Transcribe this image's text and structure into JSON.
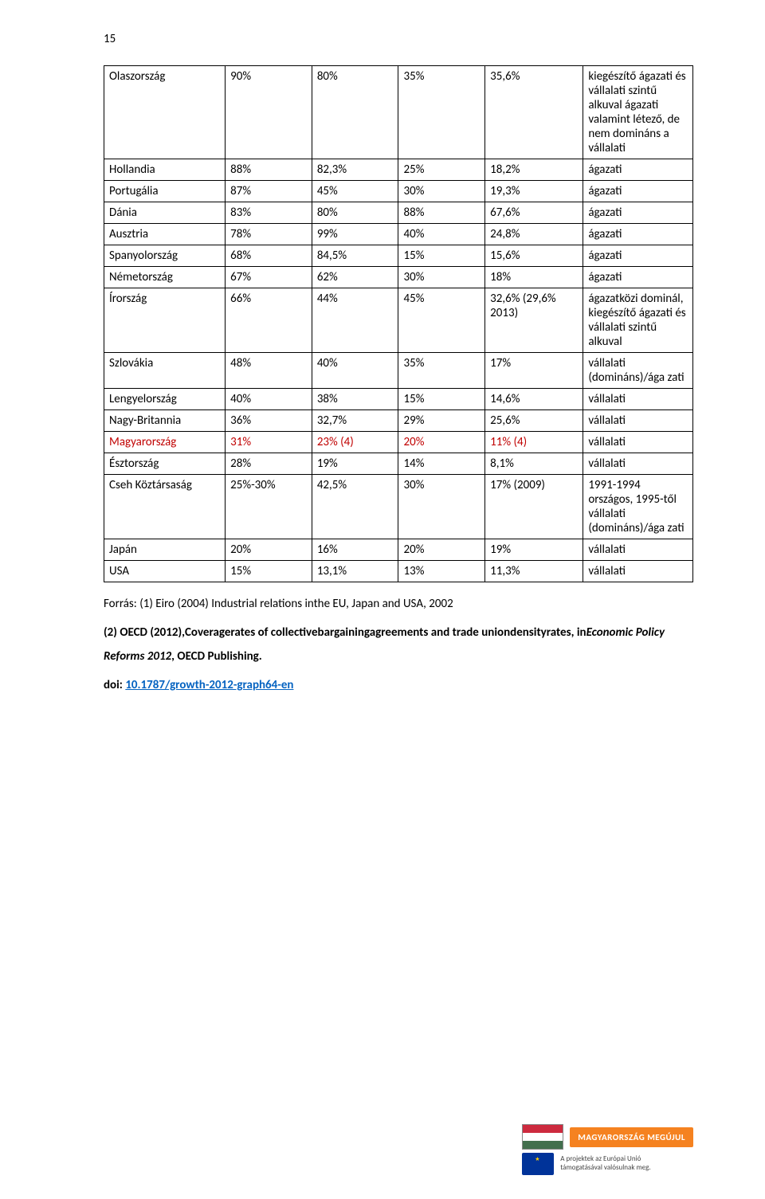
{
  "page_number": "15",
  "table": {
    "rows": [
      {
        "c0": "Olaszország",
        "c1": "90%",
        "c2": "80%",
        "c3": "35%",
        "c4": "35,6%",
        "c5": "kiegészítő ágazati és vállalati szintű alkuval ágazati valamint létező, de nem domináns a vállalati",
        "red": false
      },
      {
        "c0": "Hollandia",
        "c1": "88%",
        "c2": "82,3%",
        "c3": "25%",
        "c4": "18,2%",
        "c5": "ágazati",
        "red": false
      },
      {
        "c0": "Portugália",
        "c1": "87%",
        "c2": "45%",
        "c3": "30%",
        "c4": "19,3%",
        "c5": "ágazati",
        "red": false
      },
      {
        "c0": "Dánia",
        "c1": "83%",
        "c2": "80%",
        "c3": "88%",
        "c4": "67,6%",
        "c5": "ágazati",
        "red": false
      },
      {
        "c0": "Ausztria",
        "c1": "78%",
        "c2": "99%",
        "c3": "40%",
        "c4": "24,8%",
        "c5": "ágazati",
        "red": false
      },
      {
        "c0": "Spanyolország",
        "c1": "68%",
        "c2": "84,5%",
        "c3": "15%",
        "c4": "15,6%",
        "c5": "ágazati",
        "red": false
      },
      {
        "c0": "Németország",
        "c1": "67%",
        "c2": "62%",
        "c3": "30%",
        "c4": "18%",
        "c5": "ágazati",
        "red": false
      },
      {
        "c0": "Írország",
        "c1": "66%",
        "c2": "44%",
        "c3": "45%",
        "c4": "32,6% (29,6% 2013)",
        "c5": "ágazatközi dominál, kiegészítő ágazati és vállalati szintű alkuval",
        "red": false
      },
      {
        "c0": "Szlovákia",
        "c1": "48%",
        "c2": "40%",
        "c3": "35%",
        "c4": "17%",
        "c5": "vállalati (domináns)/ága zati",
        "red": false
      },
      {
        "c0": "Lengyelország",
        "c1": "40%",
        "c2": "38%",
        "c3": "15%",
        "c4": "14,6%",
        "c5": "vállalati",
        "red": false
      },
      {
        "c0": "Nagy-Britannia",
        "c1": "36%",
        "c2": "32,7%",
        "c3": "29%",
        "c4": "25,6%",
        "c5": "vállalati",
        "red": false
      },
      {
        "c0": "Magyarország",
        "c1": "31%",
        "c2": "23% (4)",
        "c3": "20%",
        "c4": "11% (4)",
        "c5": "vállalati",
        "red": true
      },
      {
        "c0": "Észtország",
        "c1": "28%",
        "c2": "19%",
        "c3": "14%",
        "c4": "8,1%",
        "c5": "vállalati",
        "red": false
      },
      {
        "c0": "Cseh Köztársaság",
        "c1": "25%-30%",
        "c2": "42,5%",
        "c3": "30%",
        "c4": "17% (2009)",
        "c5": "1991-1994 országos, 1995-től vállalati (domináns)/ága zati",
        "red": false
      },
      {
        "c0": "Japán",
        "c1": "20%",
        "c2": "16%",
        "c3": "20%",
        "c4": "19%",
        "c5": "vállalati",
        "red": false
      },
      {
        "c0": "USA",
        "c1": "15%",
        "c2": "13,1%",
        "c3": "13%",
        "c4": "11,3%",
        "c5": "vállalati",
        "red": false
      }
    ]
  },
  "source": {
    "line1": "Forrás: (1) Eiro (2004) Industrial relations inthe EU, Japan and USA, 2002",
    "line2_bold": "(2) OECD (2012),Coveragerates of collectivebargainingagreements and trade uniondensityrates, in",
    "line2_italic": "Economic Policy Reforms 2012",
    "line2_tail": ", OECD Publishing.",
    "doi_label": "doi: ",
    "doi_link": "10.1787/growth-2012-graph64-en"
  },
  "footer": {
    "badge": "MAGYARORSZÁG MEGÚJUL",
    "eu1": "A projektek az Európai Unió",
    "eu2": "támogatásával valósulnak meg."
  }
}
